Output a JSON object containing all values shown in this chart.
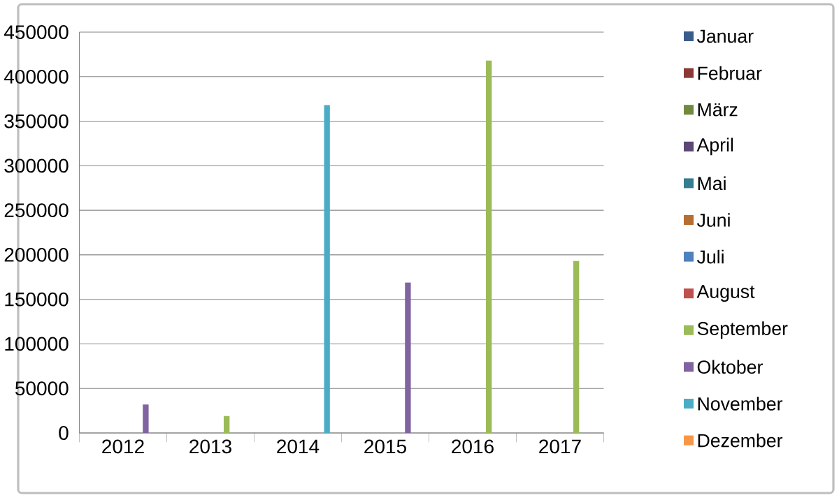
{
  "chart_data": {
    "type": "bar",
    "categories": [
      "2012",
      "2013",
      "2014",
      "2015",
      "2016",
      "2017"
    ],
    "series": [
      {
        "name": "Januar",
        "color": "#385d8a",
        "values": [
          null,
          null,
          null,
          null,
          null,
          null
        ]
      },
      {
        "name": "Februar",
        "color": "#8c3836",
        "values": [
          null,
          null,
          null,
          null,
          null,
          null
        ]
      },
      {
        "name": "März",
        "color": "#71893f",
        "values": [
          null,
          null,
          null,
          null,
          null,
          null
        ]
      },
      {
        "name": "April",
        "color": "#5c4776",
        "values": [
          null,
          null,
          null,
          null,
          null,
          null
        ]
      },
      {
        "name": "Mai",
        "color": "#357d91",
        "values": [
          null,
          null,
          null,
          null,
          null,
          null
        ]
      },
      {
        "name": "Juni",
        "color": "#b66d31",
        "values": [
          null,
          null,
          null,
          null,
          null,
          null
        ]
      },
      {
        "name": "Juli",
        "color": "#4f81bd",
        "values": [
          null,
          null,
          null,
          null,
          null,
          null
        ]
      },
      {
        "name": "August",
        "color": "#c0504d",
        "values": [
          null,
          null,
          null,
          null,
          null,
          null
        ]
      },
      {
        "name": "September",
        "color": "#9bbb59",
        "values": [
          null,
          19000,
          null,
          null,
          418000,
          193000
        ]
      },
      {
        "name": "Oktober",
        "color": "#8064a2",
        "values": [
          32000,
          null,
          null,
          169000,
          null,
          null
        ]
      },
      {
        "name": "November",
        "color": "#4bacc6",
        "values": [
          null,
          null,
          368000,
          null,
          null,
          null
        ]
      },
      {
        "name": "Dezember",
        "color": "#f79646",
        "values": [
          null,
          null,
          null,
          null,
          null,
          null
        ]
      }
    ],
    "ylim": [
      0,
      450000
    ],
    "yticks": [
      0,
      50000,
      100000,
      150000,
      200000,
      250000,
      300000,
      350000,
      400000,
      450000
    ],
    "grid": "y",
    "legend": "right"
  }
}
